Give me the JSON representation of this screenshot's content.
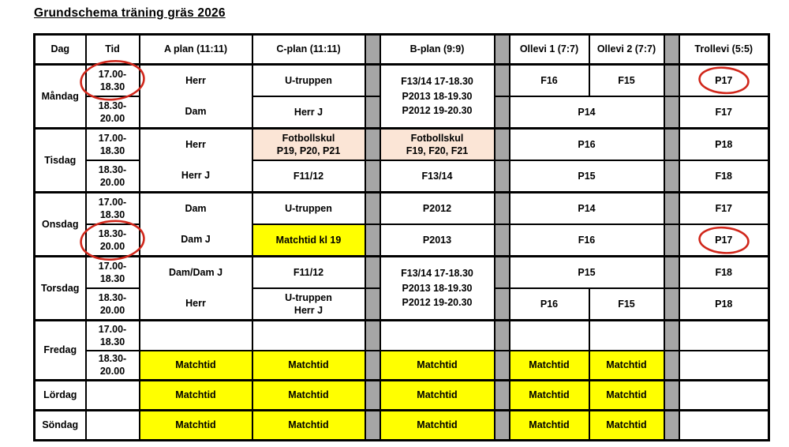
{
  "title": "Grundschema träning gräs 2026",
  "table": {
    "headers": {
      "dag": "Dag",
      "tid": "Tid",
      "a_plan": "A plan (11:11)",
      "c_plan": "C-plan (11:11)",
      "b_plan": "B-plan (9:9)",
      "ollevi1": "Ollevi 1 (7:7)",
      "ollevi2": "Ollevi 2 (7:7)",
      "trollevi": "Trollevi (5:5)"
    },
    "times": {
      "early": [
        "17.00-",
        "18.30"
      ],
      "late": [
        "18.30-",
        "20.00"
      ]
    },
    "days": {
      "mandag": {
        "label": "Måndag",
        "a_plan_early": "Herr",
        "a_plan_late": "Dam",
        "c_plan_early": "U-truppen",
        "c_plan_late": "Herr J",
        "b_plan": [
          "F13/14 17-18.30",
          "P2013 18-19.30",
          "P2012 19-20.30"
        ],
        "ollevi1_early": "F16",
        "ollevi2_early": "F15",
        "ollevi_late": "P14",
        "trollevi_early": "P17",
        "trollevi_late": "F17"
      },
      "tisdag": {
        "label": "Tisdag",
        "a_plan_early": "Herr",
        "a_plan_late": "Herr J",
        "c_plan_early": [
          "Fotbollskul",
          "P19, P20, P21"
        ],
        "c_plan_late": "F11/12",
        "b_plan_early": [
          "Fotbollskul",
          "F19, F20, F21"
        ],
        "b_plan_late": "F13/14",
        "ollevi_early": "P16",
        "ollevi_late": "P15",
        "trollevi_early": "P18",
        "trollevi_late": "F18"
      },
      "onsdag": {
        "label": "Onsdag",
        "a_plan_early": "Dam",
        "a_plan_late": "Dam J",
        "c_plan_early": "U-truppen",
        "c_plan_late": "Matchtid kl 19",
        "b_plan_early": "P2012",
        "b_plan_late": "P2013",
        "ollevi_early": "P14",
        "ollevi_late": "F16",
        "trollevi_early": "F17",
        "trollevi_late": "P17"
      },
      "torsdag": {
        "label": "Torsdag",
        "a_plan_early": "Dam/Dam J",
        "a_plan_late": "Herr",
        "c_plan_early": "F11/12",
        "c_plan_late": [
          "U-truppen",
          "Herr J"
        ],
        "b_plan": [
          "F13/14 17-18.30",
          "P2013 18-19.30",
          "P2012 19-20.30"
        ],
        "ollevi_early": "P15",
        "ollevi1_late": "P16",
        "ollevi2_late": "F15",
        "trollevi_early": "F18",
        "trollevi_late": "P18"
      },
      "fredag": {
        "label": "Fredag",
        "matchtid": "Matchtid"
      },
      "lordag": {
        "label": "Lördag",
        "matchtid": "Matchtid"
      },
      "sondag": {
        "label": "Söndag",
        "matchtid": "Matchtid"
      }
    }
  },
  "annotations": {
    "red_circles": [
      "Måndag tid 17.00-18.30",
      "Måndag Trollevi P17",
      "Onsdag tid 18.30-20.00",
      "Onsdag Trollevi P17"
    ]
  },
  "colors": {
    "matchtid_yellow": "#ffff00",
    "fotbollskul_peach": "#fbe5d6",
    "spacer_gray": "#a6a6a6",
    "annotation_red": "#d0261a"
  }
}
